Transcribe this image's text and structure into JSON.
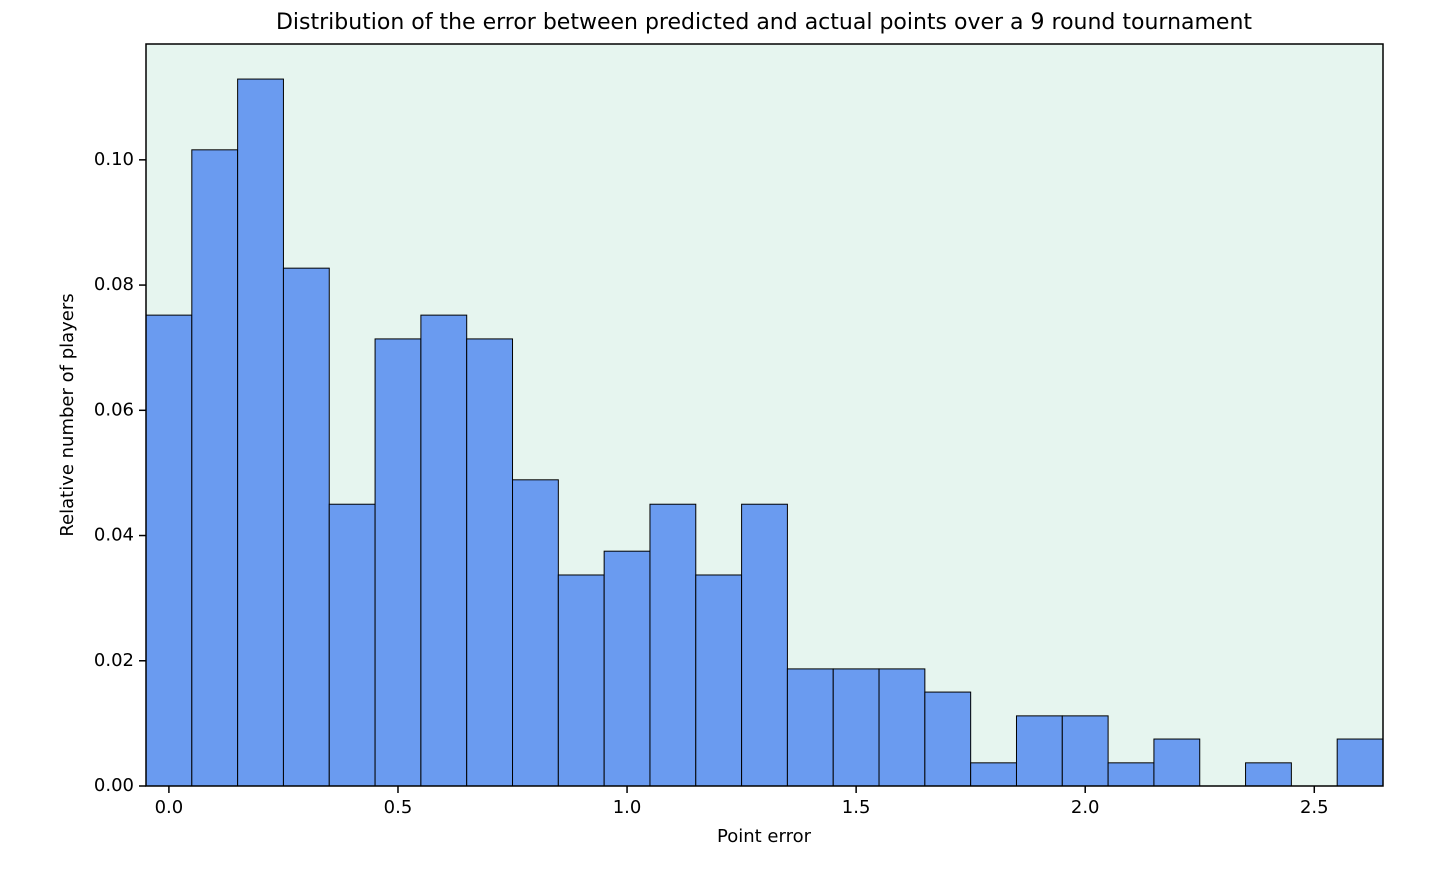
{
  "chart_data": {
    "type": "histogram",
    "title": "Distribution of the error between predicted and actual points over a 9 round tournament",
    "xlabel": "Point error",
    "ylabel": "Relative number of players",
    "bins": [
      -0.05,
      0.05,
      0.15,
      0.25,
      0.35,
      0.45,
      0.55,
      0.65,
      0.75,
      0.85,
      0.95,
      1.05,
      1.15,
      1.25,
      1.35,
      1.45,
      1.55,
      1.65,
      1.75,
      1.85,
      1.95,
      2.05,
      2.15,
      2.25,
      2.35,
      2.45,
      2.55,
      2.65
    ],
    "values": [
      0.0752,
      0.1016,
      0.1129,
      0.0827,
      0.045,
      0.0714,
      0.0752,
      0.0714,
      0.0489,
      0.0337,
      0.0375,
      0.045,
      0.0337,
      0.045,
      0.0187,
      0.0187,
      0.0187,
      0.015,
      0.0037,
      0.0112,
      0.0112,
      0.0037,
      0.0075,
      0,
      0.0037,
      0,
      0.0075
    ],
    "color": "#6a9bf0",
    "background": "#e6f5ef",
    "xlim": [
      -0.05,
      2.65
    ],
    "ylim": [
      0,
      0.1185
    ],
    "xticks": [
      {
        "value": 0,
        "label": "0.0"
      },
      0.5,
      {
        "value": 1,
        "label": "1.0"
      },
      1.5,
      {
        "value": 2,
        "label": "2.0"
      },
      2.5
    ],
    "yticks": [
      {
        "value": 0,
        "label": "0.00"
      },
      0.02,
      0.04,
      0.06,
      0.08,
      {
        "value": 0.1,
        "label": "0.10"
      }
    ]
  }
}
